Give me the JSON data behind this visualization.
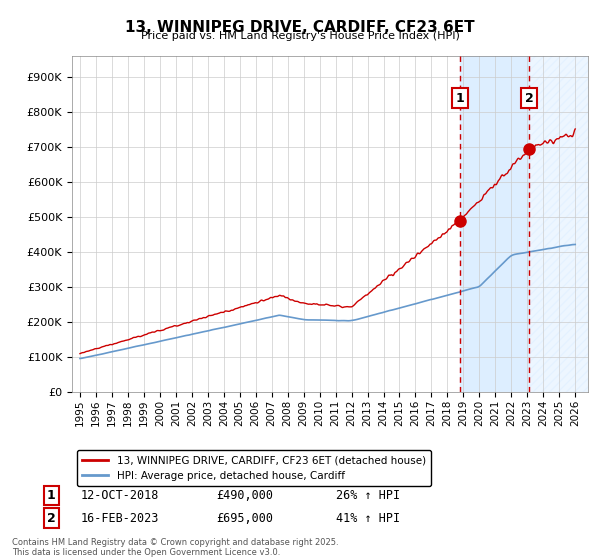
{
  "title": "13, WINNIPEG DRIVE, CARDIFF, CF23 6ET",
  "subtitle": "Price paid vs. HM Land Registry's House Price Index (HPI)",
  "yticks": [
    0,
    100000,
    200000,
    300000,
    400000,
    500000,
    600000,
    700000,
    800000,
    900000
  ],
  "ytick_labels": [
    "£0",
    "£100K",
    "£200K",
    "£300K",
    "£400K",
    "£500K",
    "£600K",
    "£700K",
    "£800K",
    "£900K"
  ],
  "ylim": [
    0,
    960000
  ],
  "xlim_start": 1994.5,
  "xlim_end": 2026.8,
  "xticks": [
    1995,
    1996,
    1997,
    1998,
    1999,
    2000,
    2001,
    2002,
    2003,
    2004,
    2005,
    2006,
    2007,
    2008,
    2009,
    2010,
    2011,
    2012,
    2013,
    2014,
    2015,
    2016,
    2017,
    2018,
    2019,
    2020,
    2021,
    2022,
    2023,
    2024,
    2025,
    2026
  ],
  "sale1_x": 2018.79,
  "sale1_y": 490000,
  "sale1_label": "1",
  "sale1_date": "12-OCT-2018",
  "sale1_price": "£490,000",
  "sale1_hpi": "26% ↑ HPI",
  "sale2_x": 2023.12,
  "sale2_y": 695000,
  "sale2_label": "2",
  "sale2_date": "16-FEB-2023",
  "sale2_price": "£695,000",
  "sale2_hpi": "41% ↑ HPI",
  "red_color": "#cc0000",
  "blue_color": "#6699cc",
  "shaded_color": "#ddeeff",
  "hatch_color": "#aabbcc",
  "vline_color": "#cc0000",
  "legend1": "13, WINNIPEG DRIVE, CARDIFF, CF23 6ET (detached house)",
  "legend2": "HPI: Average price, detached house, Cardiff",
  "footnote": "Contains HM Land Registry data © Crown copyright and database right 2025.\nThis data is licensed under the Open Government Licence v3.0.",
  "bg_color": "#ffffff",
  "grid_color": "#cccccc"
}
